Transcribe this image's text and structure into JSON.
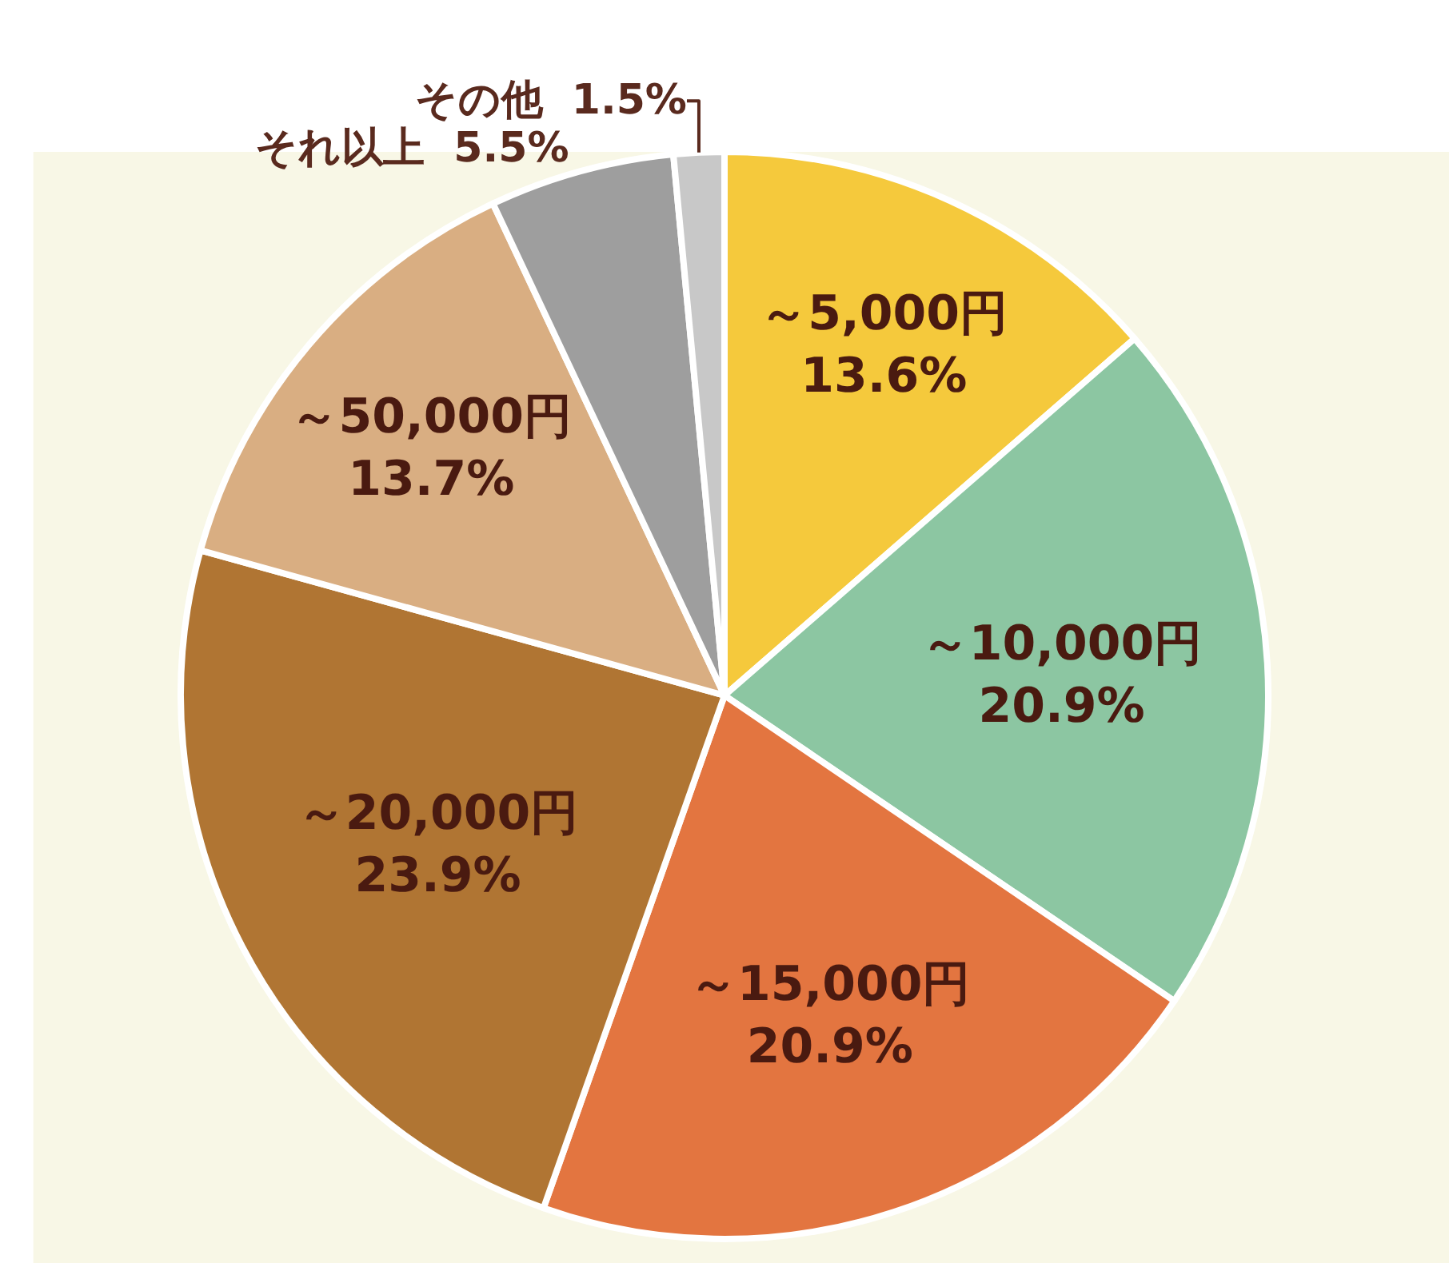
{
  "chart_data": {
    "type": "pie",
    "categories": [
      "～5,000円",
      "～10,000円",
      "～15,000円",
      "～20,000円",
      "～50,000円",
      "それ以上",
      "その他"
    ],
    "values": [
      13.6,
      20.9,
      20.9,
      23.9,
      13.7,
      5.5,
      1.5
    ],
    "value_labels": [
      "13.6%",
      "20.9%",
      "20.9%",
      "23.9%",
      "13.7%",
      "5.5%",
      "1.5%"
    ],
    "colors": [
      "#f5c93c",
      "#8cc6a2",
      "#e37540",
      "#b07533",
      "#d9ae82",
      "#9e9e9e",
      "#c8c8c8"
    ],
    "legend": false
  }
}
